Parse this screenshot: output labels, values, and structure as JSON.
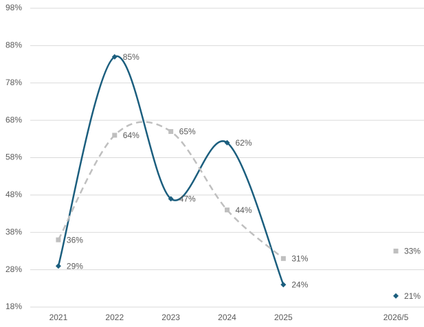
{
  "chart_data": {
    "type": "line",
    "categories": [
      "2021",
      "2022",
      "2023",
      "2024",
      "2025",
      null,
      "2026/5"
    ],
    "series": [
      {
        "color": "#1b5e7e",
        "marker": "diamond",
        "dash": false,
        "values": [
          29,
          85,
          47,
          62,
          24,
          null,
          21
        ],
        "value_labels": [
          "29%",
          "85%",
          "47%",
          "62%",
          "24%",
          null,
          "21%"
        ]
      },
      {
        "color": "#bfbfbf",
        "marker": "square",
        "dash": true,
        "values": [
          36,
          64,
          65,
          44,
          31,
          null,
          33
        ],
        "value_labels": [
          "36%",
          "64%",
          "65%",
          "44%",
          "31%",
          null,
          "33%"
        ]
      }
    ],
    "ylim": [
      18,
      98
    ],
    "yticks": [
      {
        "value": 18,
        "label": "18%"
      },
      {
        "value": 28,
        "label": "28%"
      },
      {
        "value": 38,
        "label": "38%"
      },
      {
        "value": 48,
        "label": "48%"
      },
      {
        "value": 58,
        "label": "58%"
      },
      {
        "value": 68,
        "label": "68%"
      },
      {
        "value": 78,
        "label": "78%"
      },
      {
        "value": 88,
        "label": "88%"
      },
      {
        "value": 98,
        "label": "98%"
      }
    ],
    "grid": true,
    "smooth": true
  }
}
